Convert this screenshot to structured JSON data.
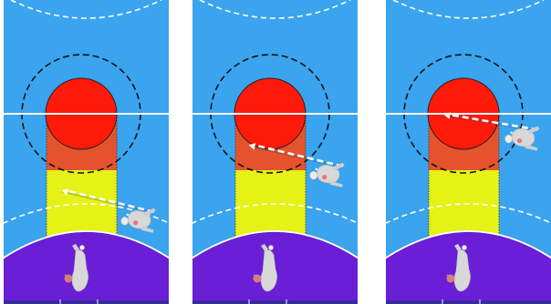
{
  "colors": {
    "court": "#3aa4ee",
    "court_line": "#ffffff",
    "dashed_circle": "#111111",
    "target_red": "#ff1a0a",
    "zone_orange": "#e5532c",
    "zone_yellow": "#e6f116",
    "goal_area": "#6a1fd6",
    "goal_area_edge": "#3b2a9a",
    "pass_arrow": "#ffffff",
    "player": "#d8d8d8",
    "player_accent": "#e9747a"
  },
  "icons": {
    "defender": "player-figure-icon",
    "attacker": "player-figure-icon",
    "arrow": "pass-arrow-icon"
  },
  "panels": [
    {
      "arrow_from": [
        0.91,
        0.7
      ],
      "arrow_to": [
        0.35,
        0.63
      ]
    },
    {
      "arrow_from": [
        0.91,
        0.55
      ],
      "arrow_to": [
        0.34,
        0.48
      ]
    },
    {
      "arrow_from": [
        0.92,
        0.43
      ],
      "arrow_to": [
        0.35,
        0.38
      ]
    }
  ]
}
